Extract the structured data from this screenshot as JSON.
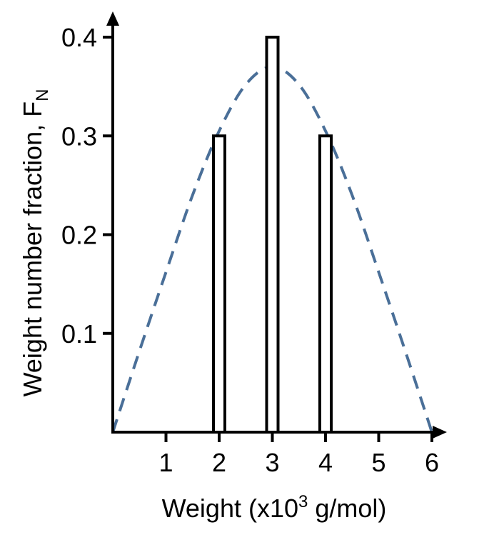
{
  "chart_data": {
    "type": "bar",
    "title": "",
    "xlabel": {
      "text_before": "Weight (x10",
      "superscript": "3",
      "text_after": " g/mol)"
    },
    "ylabel": {
      "text": "Weight number fraction, F",
      "subscript": "N"
    },
    "xlim": [
      0,
      6
    ],
    "ylim": [
      0,
      0.4
    ],
    "x_ticks": [
      1,
      2,
      3,
      4,
      5,
      6
    ],
    "x_tick_labels": [
      "1",
      "2",
      "3",
      "4",
      "5",
      "6"
    ],
    "y_ticks": [
      0.1,
      0.2,
      0.3,
      0.4
    ],
    "y_tick_labels": [
      "0.1",
      "0.2",
      "0.3",
      "0.4"
    ],
    "grid": false,
    "categories": [
      2,
      3,
      4
    ],
    "values": [
      0.3,
      0.4,
      0.3
    ],
    "bar_style": {
      "fill": "#ffffff",
      "stroke": "#000000"
    },
    "curve": {
      "style": "dashed",
      "color": "#4a6f98",
      "x": [
        0,
        0.5,
        1,
        1.5,
        2,
        2.5,
        3,
        3.5,
        4,
        4.5,
        5,
        5.5,
        6
      ],
      "y": [
        0,
        0.082,
        0.162,
        0.24,
        0.305,
        0.352,
        0.37,
        0.352,
        0.305,
        0.24,
        0.162,
        0.082,
        0
      ]
    }
  }
}
